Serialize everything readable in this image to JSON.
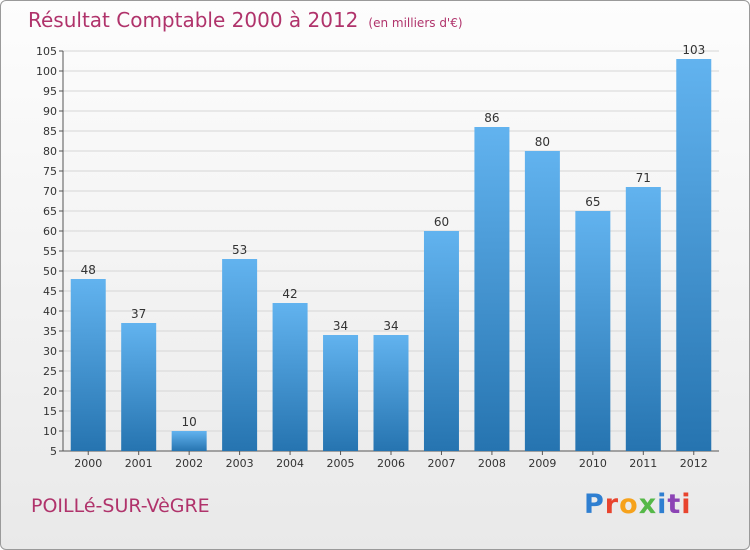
{
  "header": {
    "title": "Résultat Comptable 2000 à 2012",
    "unit": "(en milliers d'€)"
  },
  "footer": {
    "commune": "POILLé-SUR-VèGRE",
    "brand": "Proxiti"
  },
  "colors": {
    "title": "#b0336b",
    "bar_top": "#62b3ef",
    "bar_bottom": "#2674b0",
    "logo": [
      "#2f7fd1",
      "#e8442e",
      "#f6a21c",
      "#55b848",
      "#2f7fd1",
      "#8c44b5",
      "#e8442e"
    ]
  },
  "chart_data": {
    "type": "bar",
    "title": "Résultat Comptable 2000 à 2012",
    "subtitle": "(en milliers d'€)",
    "categories": [
      "2000",
      "2001",
      "2002",
      "2003",
      "2004",
      "2005",
      "2006",
      "2007",
      "2008",
      "2009",
      "2010",
      "2011",
      "2012"
    ],
    "values": [
      48,
      37,
      10,
      53,
      42,
      34,
      34,
      60,
      86,
      80,
      65,
      71,
      103
    ],
    "data_labels": [
      "48",
      "37",
      "10",
      "53",
      "42",
      "34",
      "34",
      "60",
      "86",
      "80",
      "65",
      "71",
      "103"
    ],
    "ylim": [
      5,
      105
    ],
    "yticks": [
      5,
      10,
      15,
      20,
      25,
      30,
      35,
      40,
      45,
      50,
      55,
      60,
      65,
      70,
      75,
      80,
      85,
      90,
      95,
      100,
      105
    ],
    "ytick_labels": [
      "5",
      "10",
      "15",
      "20",
      "25",
      "30",
      "35",
      "40",
      "45",
      "50",
      "55",
      "60",
      "65",
      "70",
      "75",
      "80",
      "85",
      "90",
      "95",
      "100",
      "105"
    ],
    "grid": true,
    "xlabel": "",
    "ylabel": ""
  }
}
